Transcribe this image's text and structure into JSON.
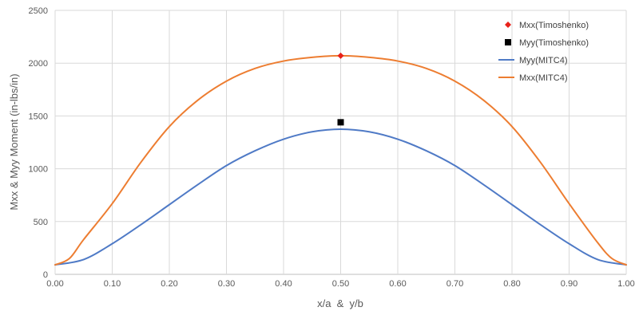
{
  "chart_data": {
    "type": "line",
    "xlabel": "x/a  &  y/b",
    "ylabel": "Mxx & Myy Moment (in-lbs/in)",
    "xlim": [
      0,
      1
    ],
    "ylim": [
      0,
      2500
    ],
    "x_ticks": [
      "0.00",
      "0.10",
      "0.20",
      "0.30",
      "0.40",
      "0.50",
      "0.60",
      "0.70",
      "0.80",
      "0.90",
      "1.00"
    ],
    "y_ticks": [
      "0",
      "500",
      "1000",
      "1500",
      "2000",
      "2500"
    ],
    "grid": true,
    "legend_position": "top-right",
    "series": [
      {
        "name": "Mxx(Timoshenko)",
        "kind": "marker",
        "marker": "diamond",
        "color": "#e8221b",
        "x": [
          0.5
        ],
        "y": [
          2070
        ]
      },
      {
        "name": "Myy(Timoshenko)",
        "kind": "marker",
        "marker": "square",
        "color": "#000000",
        "x": [
          0.5
        ],
        "y": [
          1440
        ]
      },
      {
        "name": "Myy(MITC4)",
        "kind": "line",
        "color": "#4f7ac6",
        "x": [
          0,
          0.05,
          0.1,
          0.15,
          0.2,
          0.25,
          0.3,
          0.35,
          0.4,
          0.45,
          0.5,
          0.55,
          0.6,
          0.65,
          0.7,
          0.75,
          0.8,
          0.85,
          0.9,
          0.95,
          1.0
        ],
        "y": [
          90,
          140,
          290,
          470,
          660,
          850,
          1030,
          1170,
          1280,
          1350,
          1375,
          1350,
          1280,
          1170,
          1030,
          850,
          660,
          470,
          290,
          140,
          90
        ]
      },
      {
        "name": "Mxx(MITC4)",
        "kind": "line",
        "color": "#ed7d31",
        "x": [
          0,
          0.025,
          0.05,
          0.1,
          0.15,
          0.2,
          0.25,
          0.3,
          0.35,
          0.4,
          0.45,
          0.5,
          0.55,
          0.6,
          0.65,
          0.7,
          0.75,
          0.8,
          0.85,
          0.9,
          0.95,
          0.975,
          1.0
        ],
        "y": [
          90,
          150,
          330,
          670,
          1060,
          1400,
          1650,
          1830,
          1950,
          2020,
          2055,
          2070,
          2055,
          2020,
          1950,
          1830,
          1650,
          1400,
          1060,
          670,
          300,
          150,
          90
        ]
      }
    ]
  }
}
